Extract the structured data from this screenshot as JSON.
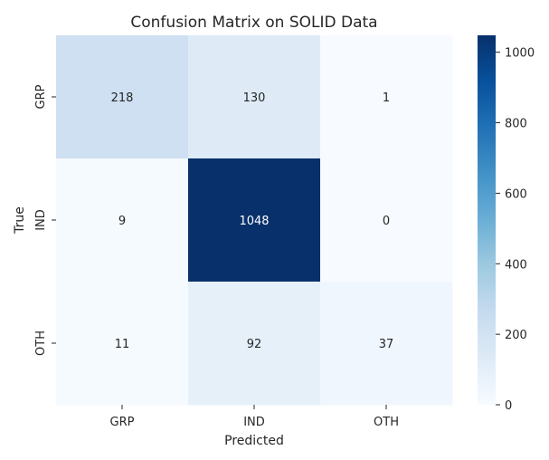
{
  "chart_data": {
    "type": "heatmap",
    "title": "Confusion Matrix on SOLID Data",
    "xlabel": "Predicted",
    "ylabel": "True",
    "x_categories": [
      "GRP",
      "IND",
      "OTH"
    ],
    "y_categories": [
      "GRP",
      "IND",
      "OTH"
    ],
    "values": [
      [
        218,
        130,
        1
      ],
      [
        9,
        1048,
        0
      ],
      [
        11,
        92,
        37
      ]
    ],
    "colormap": "Blues",
    "value_range": [
      0,
      1048
    ],
    "colorbar": {
      "ticks": [
        0,
        200,
        400,
        600,
        800,
        1000
      ]
    },
    "grid": false,
    "colors": {
      "min": "#f7fbff",
      "max": "#08306b",
      "text_light": "#262626",
      "text_dark": "#ffffff"
    }
  }
}
